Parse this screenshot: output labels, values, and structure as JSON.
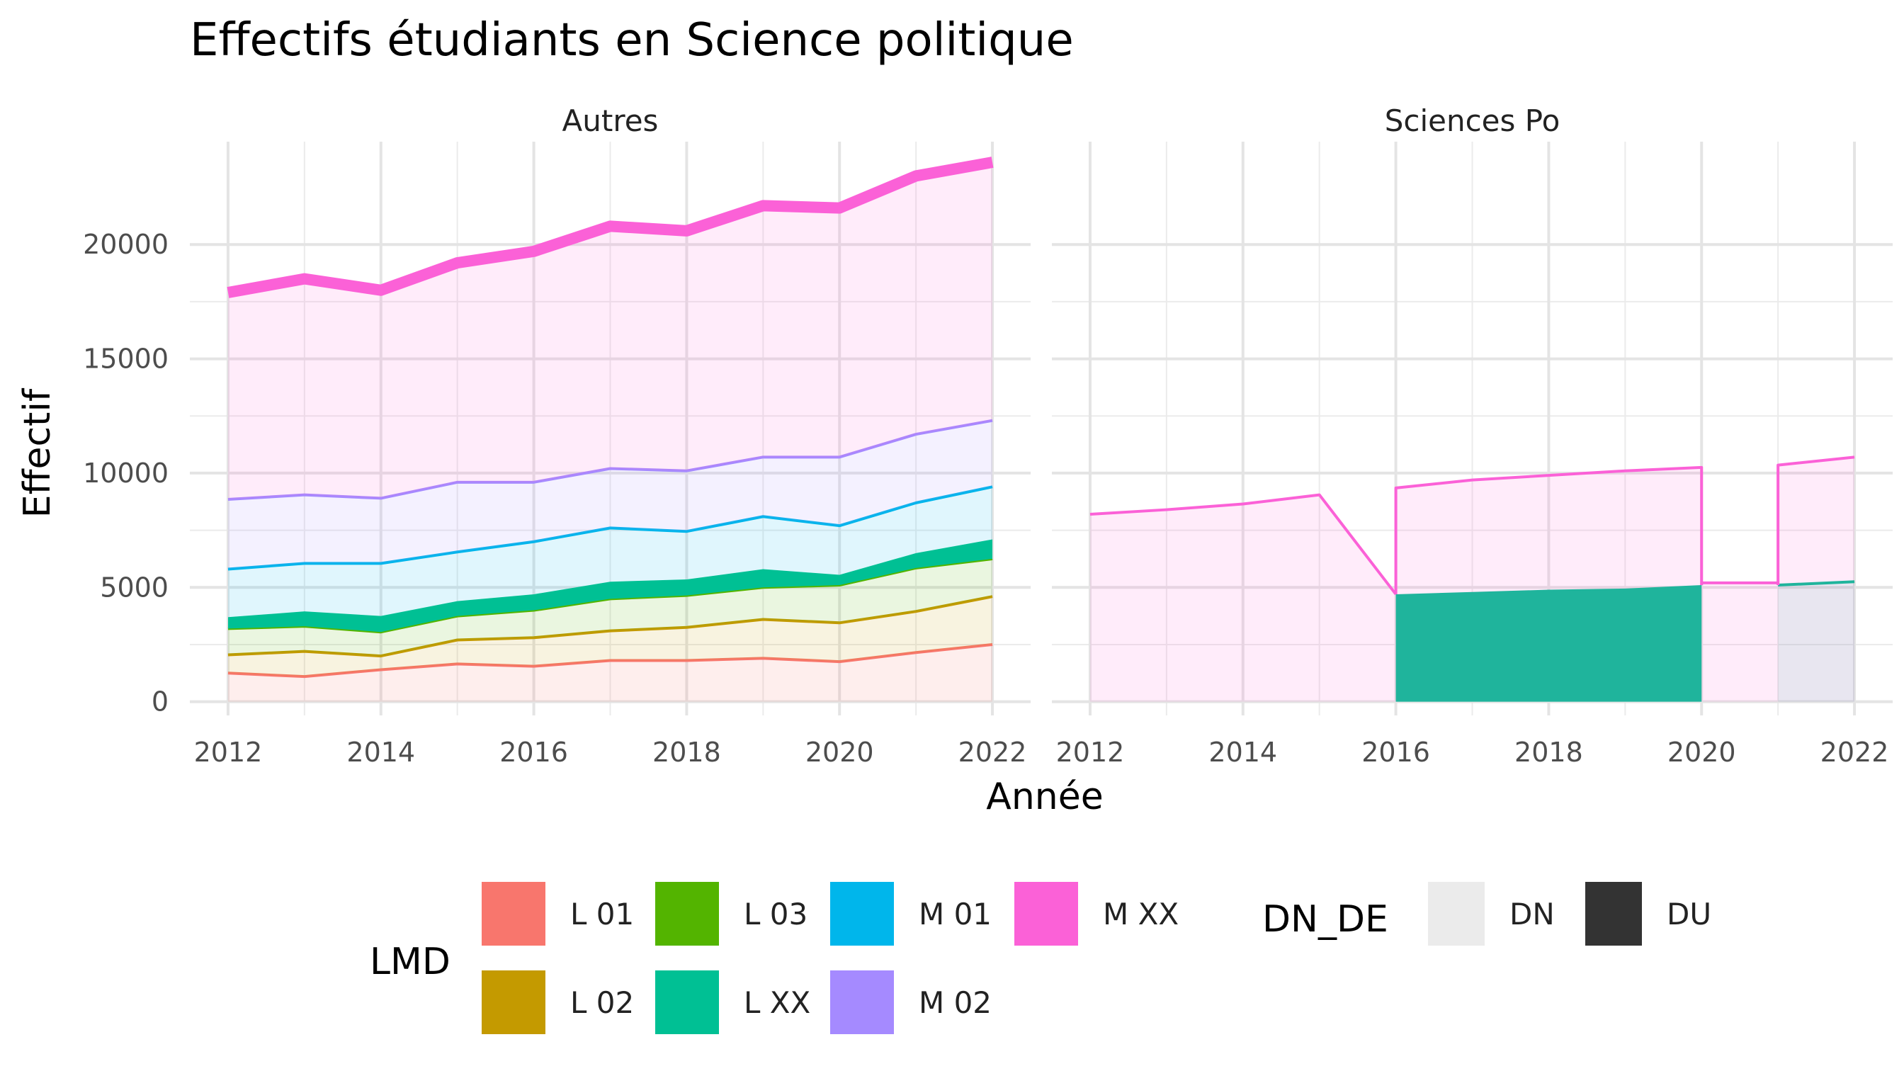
{
  "chart_data": {
    "type": "area",
    "title": "Effectifs étudiants en Science politique",
    "xlabel": "Année",
    "ylabel": "Effectif",
    "xlim": [
      2011.5,
      2022.5
    ],
    "ylim": [
      -600,
      24500
    ],
    "x_ticks": [
      2012,
      2014,
      2016,
      2018,
      2020,
      2022
    ],
    "y_ticks": [
      0,
      5000,
      10000,
      15000,
      20000
    ],
    "grid": true,
    "stacked": true,
    "panels": [
      {
        "strip": "Autres",
        "x": [
          2012,
          2013,
          2014,
          2015,
          2016,
          2017,
          2018,
          2019,
          2020,
          2021,
          2022
        ],
        "series": [
          {
            "lmd": "L 01",
            "values": [
              1250,
              1100,
              1400,
              1650,
              1550,
              1800,
              1800,
              1900,
              1750,
              2150,
              2500
            ]
          },
          {
            "lmd": "L 02",
            "values": [
              800,
              1100,
              600,
              1050,
              1250,
              1300,
              1450,
              1700,
              1700,
              1800,
              2100
            ]
          },
          {
            "lmd": "L 03",
            "values": [
              1150,
              1100,
              1050,
              1050,
              1200,
              1400,
              1400,
              1400,
              1650,
              1900,
              1650
            ]
          },
          {
            "lmd": "L XX",
            "values": [
              500,
              650,
              700,
              650,
              700,
              750,
              700,
              800,
              450,
              650,
              850
            ]
          },
          {
            "lmd": "M 01",
            "values": [
              2100,
              2100,
              2300,
              2150,
              2300,
              2350,
              2100,
              2300,
              2150,
              2200,
              2300
            ]
          },
          {
            "lmd": "M 02",
            "values": [
              3050,
              3000,
              2850,
              3050,
              2600,
              2600,
              2650,
              2600,
              3000,
              3000,
              2900
            ]
          },
          {
            "lmd": "M XX",
            "values": [
              9050,
              9450,
              9100,
              9600,
              10100,
              10600,
              10500,
              11000,
              10900,
              11300,
              11300
            ]
          }
        ]
      },
      {
        "strip": "Sciences Po",
        "series": [
          {
            "lmd": "L XX",
            "points": [
              [
                2016,
                4700
              ],
              [
                2017,
                4800
              ],
              [
                2018,
                4900
              ],
              [
                2019,
                4950
              ],
              [
                2020,
                5100
              ]
            ]
          },
          {
            "lmd": "L XX",
            "dn_de": "DN",
            "points": [
              [
                2021,
                5100
              ],
              [
                2022,
                5250
              ]
            ]
          },
          {
            "lmd": "M XX",
            "points": [
              [
                2012,
                8200
              ],
              [
                2013,
                8400
              ],
              [
                2014,
                8650
              ],
              [
                2015,
                9050
              ],
              [
                2016,
                4700
              ]
            ]
          },
          {
            "lmd": "M XX",
            "points": [
              [
                2016,
                4700
              ],
              [
                2016,
                9350
              ],
              [
                2017,
                9700
              ],
              [
                2018,
                9900
              ],
              [
                2019,
                10100
              ],
              [
                2020,
                10250
              ],
              [
                2020,
                5100
              ]
            ]
          },
          {
            "lmd": "M XX",
            "points": [
              [
                2020,
                5200
              ],
              [
                2021,
                5200
              ]
            ]
          },
          {
            "lmd": "M XX",
            "points": [
              [
                2021,
                5100
              ],
              [
                2021,
                10350
              ],
              [
                2022,
                10700
              ]
            ]
          }
        ]
      }
    ],
    "legend": {
      "position": "bottom",
      "lmd_title": "LMD",
      "lmd": [
        {
          "label": "L 01",
          "color": "#F8766D"
        },
        {
          "label": "L 02",
          "color": "#C49A00"
        },
        {
          "label": "L 03",
          "color": "#53B400"
        },
        {
          "label": "L XX",
          "color": "#00C094"
        },
        {
          "label": "M 01",
          "color": "#00B6EB"
        },
        {
          "label": "M 02",
          "color": "#A58AFF"
        },
        {
          "label": "M XX",
          "color": "#FB61D7"
        }
      ],
      "dn_de_title": "DN_DE",
      "dn_de": [
        {
          "label": "DN",
          "color": "#EBEBEB"
        },
        {
          "label": "DU",
          "color": "#333333"
        }
      ]
    }
  }
}
